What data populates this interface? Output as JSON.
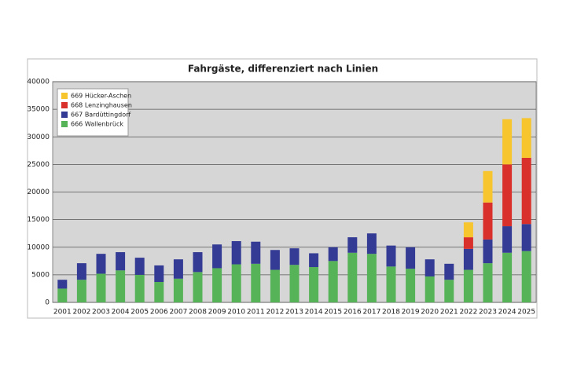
{
  "chart_data": {
    "type": "stacked_bar",
    "title": "Fahrgäste, differenziert nach Linien",
    "categories": [
      "2001",
      "2002",
      "2003",
      "2004",
      "2005",
      "2006",
      "2007",
      "2008",
      "2009",
      "2010",
      "2011",
      "2012",
      "2013",
      "2014",
      "2015",
      "2016",
      "2017",
      "2018",
      "2019",
      "2020",
      "2021",
      "2022",
      "2023",
      "2024",
      "2025"
    ],
    "series": [
      {
        "name": "666 Wallenbrück",
        "color": "#57b357",
        "values": [
          2500,
          4100,
          5200,
          5800,
          5000,
          3700,
          4300,
          5500,
          6200,
          6900,
          7000,
          5900,
          6800,
          6400,
          7500,
          9000,
          8800,
          6500,
          6100,
          4700,
          4100,
          5900,
          7100,
          9000,
          9300
        ]
      },
      {
        "name": "667 Bardüttingdorf",
        "color": "#343b94",
        "values": [
          1600,
          3000,
          3600,
          3300,
          3100,
          3000,
          3500,
          3600,
          4300,
          4200,
          4000,
          3600,
          3000,
          2500,
          2500,
          2800,
          3700,
          3800,
          3900,
          3100,
          2900,
          3800,
          4300,
          4800,
          4900
        ]
      },
      {
        "name": "668 Lenzinghausen",
        "color": "#d9302c",
        "values": [
          null,
          null,
          null,
          null,
          null,
          null,
          null,
          null,
          null,
          null,
          null,
          null,
          null,
          null,
          null,
          null,
          null,
          null,
          null,
          null,
          null,
          2100,
          6700,
          11200,
          12000
        ]
      },
      {
        "name": "669 Hücker-Aschen",
        "color": "#f7c52e",
        "values": [
          null,
          null,
          null,
          null,
          null,
          null,
          null,
          null,
          null,
          null,
          null,
          null,
          null,
          null,
          null,
          null,
          null,
          null,
          null,
          null,
          null,
          2700,
          5700,
          8200,
          7200
        ]
      }
    ],
    "ylim": [
      0,
      40000
    ],
    "yticks": [
      0,
      5000,
      10000,
      15000,
      20000,
      25000,
      30000,
      35000,
      40000
    ],
    "grid": true,
    "legend": "upper left"
  }
}
